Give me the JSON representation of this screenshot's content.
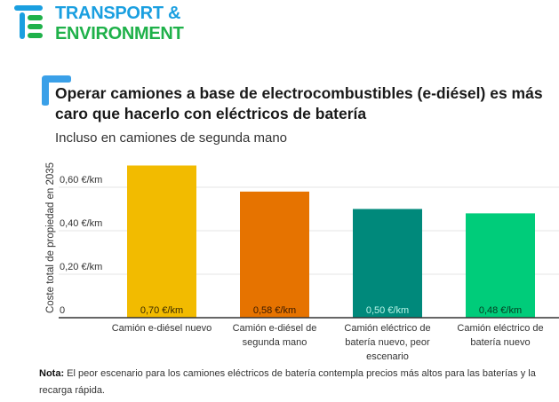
{
  "logo": {
    "line1": "TRANSPORT &",
    "line2": "ENVIRONMENT",
    "blue": "#1a9fe0",
    "green": "#1fb14a"
  },
  "chart_data": {
    "type": "bar",
    "title": "Operar camiones a base de electrocombustibles (e-diésel) es más caro que hacerlo con eléctricos de batería",
    "subtitle": "Incluso en camiones de segunda mano",
    "ylabel": "Coste total de propiedad en 2035",
    "xlabel": "",
    "ylim": [
      0,
      0.7
    ],
    "yticks": [
      {
        "value": 0,
        "label": "0"
      },
      {
        "value": 0.2,
        "label": "0,20 €/km"
      },
      {
        "value": 0.4,
        "label": "0,40 €/km"
      },
      {
        "value": 0.6,
        "label": "0,60 €/km"
      }
    ],
    "grid": true,
    "categories": [
      [
        "Camión e-diésel nuevo"
      ],
      [
        "Camión e-diésel de",
        "segunda mano"
      ],
      [
        "Camión eléctrico de",
        "batería nuevo, peor",
        "escenario"
      ],
      [
        "Camión eléctrico de",
        "batería nuevo"
      ]
    ],
    "values": [
      0.7,
      0.58,
      0.5,
      0.48
    ],
    "data_labels": [
      "0,70 €/km",
      "0,58 €/km",
      "0,50 €/km",
      "0,48 €/km"
    ],
    "colors": [
      "#f2bb00",
      "#e67300",
      "#00897b",
      "#00cc7a"
    ],
    "label_colors": [
      "#3a2a00",
      "#3a1a00",
      "#b8f5e8",
      "#063b22"
    ]
  },
  "note": {
    "label": "Nota:",
    "text": " El peor escenario para los camiones eléctricos de batería contempla precios más altos para las baterías y la recarga rápida."
  }
}
